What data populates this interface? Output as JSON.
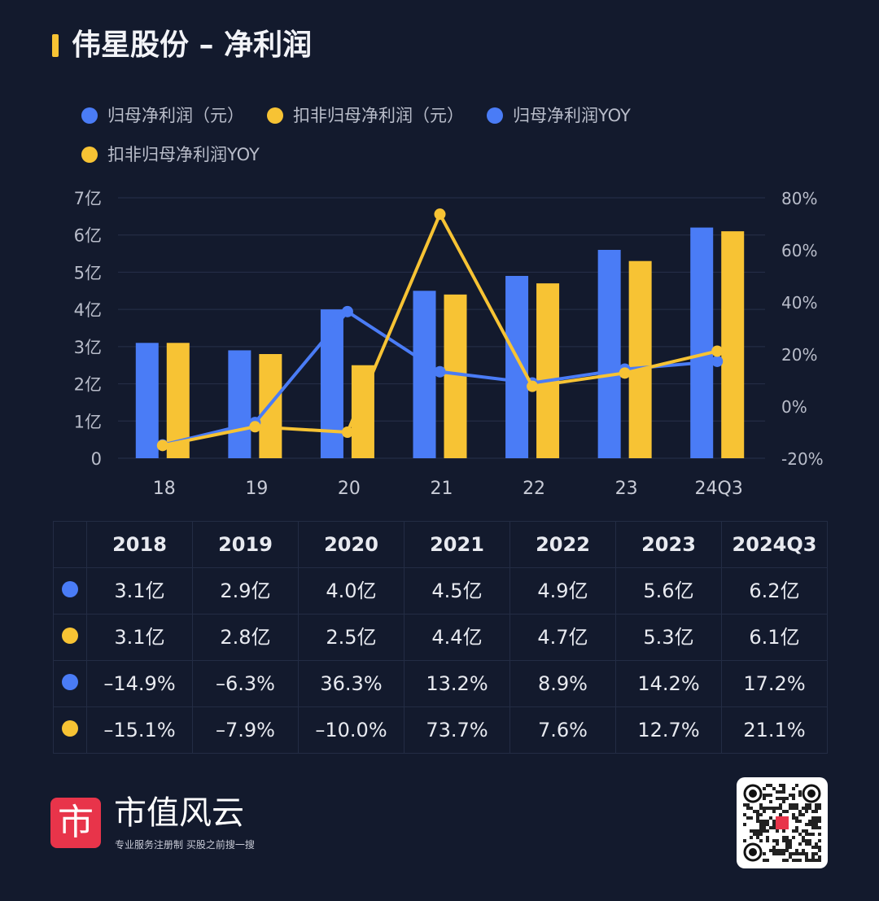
{
  "title": "伟星股份 – 净利润",
  "colors": {
    "blue": "#4a7cf6",
    "yellow": "#f7c334",
    "background": "#131a2d"
  },
  "chart_data": {
    "type": "bar+line",
    "categories": [
      "18",
      "19",
      "20",
      "21",
      "22",
      "23",
      "24Q3"
    ],
    "series": [
      {
        "name": "归母净利润（元）",
        "type": "bar",
        "axis": "left",
        "color": "#4a7cf6",
        "values": [
          3.1,
          2.9,
          4.0,
          4.5,
          4.9,
          5.6,
          6.2
        ]
      },
      {
        "name": "扣非归母净利润（元）",
        "type": "bar",
        "axis": "left",
        "color": "#f7c334",
        "values": [
          3.1,
          2.8,
          2.5,
          4.4,
          4.7,
          5.3,
          6.1
        ]
      },
      {
        "name": "归母净利润YOY",
        "type": "line",
        "axis": "right",
        "color": "#4a7cf6",
        "values": [
          -14.9,
          -6.3,
          36.3,
          13.2,
          8.9,
          14.2,
          17.2
        ]
      },
      {
        "name": "扣非归母净利润YOY",
        "type": "line",
        "axis": "right",
        "color": "#f7c334",
        "values": [
          -15.1,
          -7.9,
          -10.0,
          73.7,
          7.6,
          12.7,
          21.1
        ]
      }
    ],
    "left_axis": {
      "range": [
        0,
        7
      ],
      "ticks": [
        "0",
        "1亿",
        "2亿",
        "3亿",
        "4亿",
        "5亿",
        "6亿",
        "7亿"
      ]
    },
    "right_axis": {
      "range": [
        -20,
        80
      ],
      "ticks": [
        "-20%",
        "0%",
        "20%",
        "40%",
        "60%",
        "80%"
      ]
    },
    "grid": true,
    "legend": "top-left"
  },
  "table": {
    "headers": [
      "2018",
      "2019",
      "2020",
      "2021",
      "2022",
      "2023",
      "2024Q3"
    ],
    "rows": [
      {
        "color": "#4a7cf6",
        "cells": [
          "3.1亿",
          "2.9亿",
          "4.0亿",
          "4.5亿",
          "4.9亿",
          "5.6亿",
          "6.2亿"
        ]
      },
      {
        "color": "#f7c334",
        "cells": [
          "3.1亿",
          "2.8亿",
          "2.5亿",
          "4.4亿",
          "4.7亿",
          "5.3亿",
          "6.1亿"
        ]
      },
      {
        "color": "#4a7cf6",
        "cells": [
          "–14.9%",
          "–6.3%",
          "36.3%",
          "13.2%",
          "8.9%",
          "14.2%",
          "17.2%"
        ]
      },
      {
        "color": "#f7c334",
        "cells": [
          "–15.1%",
          "–7.9%",
          "–10.0%",
          "73.7%",
          "7.6%",
          "12.7%",
          "21.1%"
        ]
      }
    ]
  },
  "footer": {
    "brand": "市值风云",
    "slogan": "专业服务注册制 买股之前搜一搜",
    "logo_glyph": "市",
    "qr_icon": "qr-code-icon"
  }
}
